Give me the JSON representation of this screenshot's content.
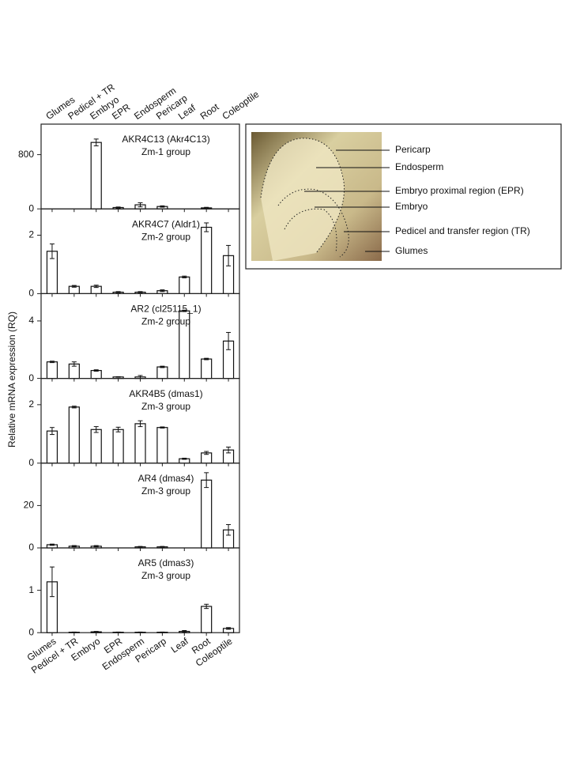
{
  "y_axis_label": "Relative mRNA expression (RQ)",
  "chart_data": [
    {
      "type": "bar",
      "title": "AKR4C13 (Akr4C13)",
      "subtitle": "Zm-1 group",
      "categories": [
        "Glumes",
        "Pedicel + TR",
        "Embryo",
        "EPR",
        "Endosperm",
        "Pericarp",
        "Leaf",
        "Root",
        "Coleoptile"
      ],
      "values": [
        0,
        0,
        980,
        20,
        60,
        35,
        0,
        15,
        0
      ],
      "errors": [
        0,
        0,
        50,
        8,
        30,
        10,
        0,
        8,
        0
      ],
      "ylim": [
        0,
        1250
      ],
      "yticks": [
        0,
        800
      ],
      "color": "#ffffff"
    },
    {
      "type": "bar",
      "title": "AKR4C7 (Aldr1)",
      "subtitle": "Zm-2 group",
      "categories": [
        "Glumes",
        "Pedicel + TR",
        "Embryo",
        "EPR",
        "Endosperm",
        "Pericarp",
        "Leaf",
        "Root",
        "Coleoptile"
      ],
      "values": [
        1.45,
        0.25,
        0.25,
        0.05,
        0.05,
        0.1,
        0.57,
        2.27,
        1.3
      ],
      "errors": [
        0.25,
        0.03,
        0.04,
        0.02,
        0.02,
        0.03,
        0.03,
        0.15,
        0.35
      ],
      "ylim": [
        0,
        2.9
      ],
      "yticks": [
        0,
        2
      ],
      "color": "#ffffff"
    },
    {
      "type": "bar",
      "title": "AR2 (cl25115_1)",
      "subtitle": "Zm-2 group",
      "categories": [
        "Glumes",
        "Pedicel + TR",
        "Embryo",
        "EPR",
        "Endosperm",
        "Pericarp",
        "Leaf",
        "Root",
        "Coleoptile"
      ],
      "values": [
        1.15,
        1.0,
        0.55,
        0.1,
        0.1,
        0.8,
        4.7,
        1.35,
        2.6
      ],
      "errors": [
        0.05,
        0.15,
        0.05,
        0.02,
        0.1,
        0.05,
        0.05,
        0.05,
        0.6
      ],
      "ylim": [
        0,
        5.9
      ],
      "yticks": [
        0,
        4
      ],
      "color": "#ffffff"
    },
    {
      "type": "bar",
      "title": "AKR4B5 (dmas1)",
      "subtitle": "Zm-3 group",
      "categories": [
        "Glumes",
        "Pedicel + TR",
        "Embryo",
        "EPR",
        "Endosperm",
        "Pericarp",
        "Leaf",
        "Root",
        "Coleoptile"
      ],
      "values": [
        1.1,
        1.92,
        1.15,
        1.15,
        1.35,
        1.22,
        0.15,
        0.35,
        0.45
      ],
      "errors": [
        0.12,
        0.03,
        0.1,
        0.08,
        0.1,
        0.02,
        0.02,
        0.05,
        0.1
      ],
      "ylim": [
        0,
        2.9
      ],
      "yticks": [
        0,
        2
      ],
      "color": "#ffffff"
    },
    {
      "type": "bar",
      "title": "AR4 (dmas4)",
      "subtitle": "Zm-3 group",
      "categories": [
        "Glumes",
        "Pedicel + TR",
        "Embryo",
        "EPR",
        "Endosperm",
        "Pericarp",
        "Leaf",
        "Root",
        "Coleoptile"
      ],
      "values": [
        1.5,
        0.8,
        0.8,
        0,
        0.5,
        0.5,
        0,
        32,
        8.5
      ],
      "errors": [
        0.3,
        0.3,
        0.3,
        0,
        0.2,
        0.2,
        0,
        3.5,
        2.5
      ],
      "ylim": [
        0,
        40
      ],
      "yticks": [
        0,
        20
      ],
      "color": "#ffffff"
    },
    {
      "type": "bar",
      "title": "AR5 (dmas3)",
      "subtitle": "Zm-3 group",
      "categories": [
        "Glumes",
        "Pedicel + TR",
        "Embryo",
        "EPR",
        "Endosperm",
        "Pericarp",
        "Leaf",
        "Root",
        "Coleoptile"
      ],
      "values": [
        1.2,
        0.01,
        0.02,
        0.01,
        0.01,
        0.01,
        0.03,
        0.62,
        0.1
      ],
      "errors": [
        0.35,
        0.005,
        0.01,
        0.005,
        0.005,
        0.005,
        0.02,
        0.05,
        0.02
      ],
      "ylim": [
        0,
        2.0
      ],
      "yticks": [
        0,
        1
      ],
      "color": "#ffffff"
    }
  ],
  "inset": {
    "labels": [
      "Pericarp",
      "Endosperm",
      "Embryo proximal region (EPR)",
      "Embryo",
      "Pedicel and transfer region (TR)",
      "Glumes"
    ]
  }
}
